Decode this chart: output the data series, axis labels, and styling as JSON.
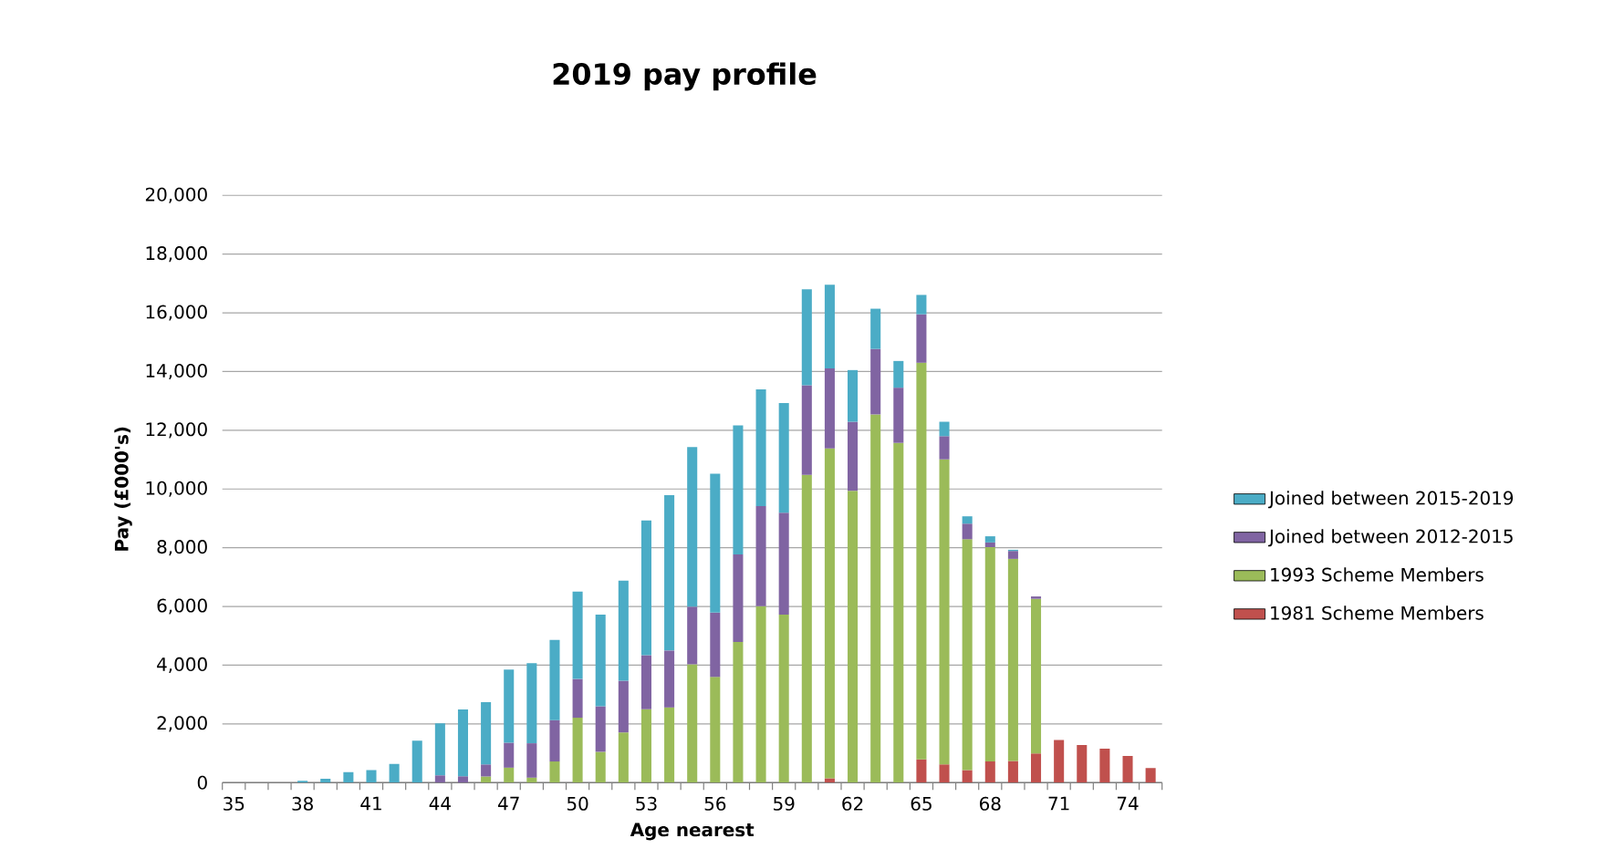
{
  "chart_data": {
    "type": "bar",
    "stacked": true,
    "title": "2019 pay profile",
    "xlabel": "Age nearest",
    "ylabel": "Pay (£000's)",
    "categories": [
      "35",
      null,
      null,
      "38",
      null,
      null,
      "41",
      null,
      null,
      "44",
      null,
      null,
      "47",
      null,
      null,
      "50",
      null,
      null,
      "53",
      null,
      null,
      "56",
      null,
      null,
      "59",
      null,
      null,
      "62",
      null,
      null,
      "65",
      null,
      null,
      "68",
      null,
      null,
      "71",
      null,
      null,
      "74",
      null
    ],
    "series": [
      {
        "name": "1981 Scheme Members",
        "color": "#c0504d",
        "values": [
          null,
          null,
          null,
          null,
          null,
          null,
          null,
          null,
          null,
          null,
          null,
          null,
          null,
          null,
          null,
          null,
          null,
          null,
          null,
          null,
          null,
          null,
          null,
          null,
          null,
          null,
          150,
          null,
          null,
          null,
          790,
          620,
          430,
          720,
          740,
          990,
          1450,
          1280,
          1160,
          910,
          500
        ]
      },
      {
        "name": "1993 Scheme Members",
        "color": "#9bbb59",
        "values": [
          null,
          null,
          null,
          null,
          null,
          null,
          null,
          null,
          null,
          null,
          null,
          210,
          510,
          170,
          720,
          2210,
          1050,
          1710,
          2500,
          2560,
          4030,
          3600,
          4790,
          6010,
          5720,
          10480,
          11230,
          9940,
          12540,
          11570,
          13510,
          10390,
          7860,
          7300,
          6880,
          5270,
          null,
          null,
          null,
          null,
          null
        ]
      },
      {
        "name": "Joined between 2012-2015",
        "color": "#8064a2",
        "values": [
          null,
          null,
          null,
          null,
          null,
          null,
          null,
          null,
          null,
          250,
          220,
          410,
          850,
          1170,
          1410,
          1320,
          1550,
          1760,
          1840,
          1940,
          1960,
          2190,
          2980,
          3410,
          3470,
          3050,
          2730,
          2350,
          2230,
          1880,
          1650,
          790,
          530,
          160,
          270,
          80,
          null,
          null,
          null,
          null,
          null
        ]
      },
      {
        "name": "Joined between 2015-2019",
        "color": "#4bacc6",
        "values": [
          null,
          null,
          null,
          60,
          130,
          360,
          430,
          640,
          1430,
          1770,
          2270,
          2120,
          2490,
          2730,
          2730,
          2980,
          3120,
          3410,
          4590,
          5290,
          5440,
          4730,
          4400,
          3970,
          3740,
          3270,
          2850,
          1760,
          1370,
          910,
          660,
          490,
          250,
          210,
          40,
          null,
          null,
          null,
          null,
          null,
          null
        ]
      }
    ],
    "ylim": [
      0,
      20000
    ],
    "yticks": [
      0,
      {
        "value": 2000,
        "label": "2,000"
      },
      {
        "value": 4000,
        "label": "4,000"
      },
      {
        "value": 6000,
        "label": "6,000"
      },
      {
        "value": 8000,
        "label": "8,000"
      },
      {
        "value": 10000,
        "label": "10,000"
      },
      {
        "value": 12000,
        "label": "12,000"
      },
      {
        "value": 14000,
        "label": "14,000"
      },
      {
        "value": 16000,
        "label": "16,000"
      },
      {
        "value": 18000,
        "label": "18,000"
      },
      {
        "value": 20000,
        "label": "20,000"
      }
    ],
    "grid": "y",
    "legend": "right"
  }
}
